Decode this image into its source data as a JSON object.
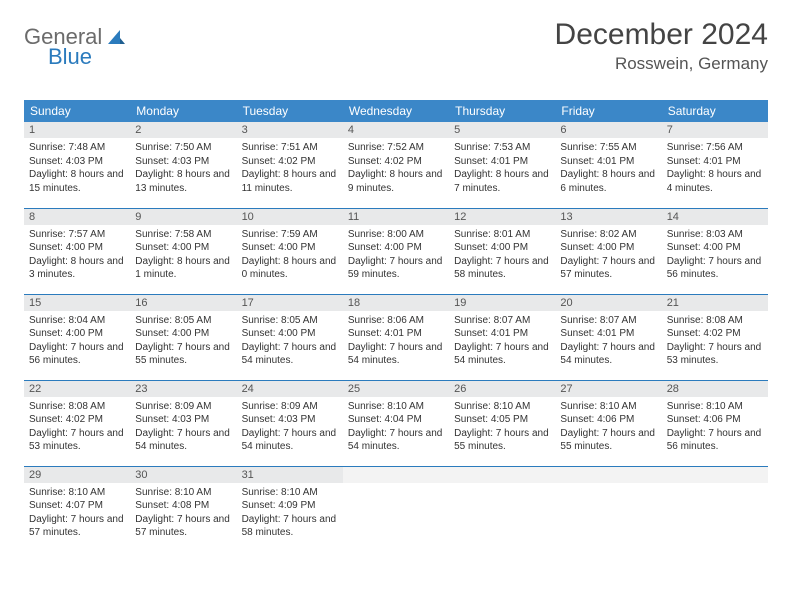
{
  "brand": {
    "word1": "General",
    "word2": "Blue",
    "accent_color": "#2b7bbd",
    "grey_color": "#6b6b6b"
  },
  "title": "December 2024",
  "location": "Rosswein, Germany",
  "header_bg": "#3b87c8",
  "daynum_bg": "#e8e9ea",
  "border_color": "#2b7bbd",
  "weekdays": [
    "Sunday",
    "Monday",
    "Tuesday",
    "Wednesday",
    "Thursday",
    "Friday",
    "Saturday"
  ],
  "weeks": [
    [
      {
        "n": "1",
        "sunrise": "7:48 AM",
        "sunset": "4:03 PM",
        "daylight": "8 hours and 15 minutes."
      },
      {
        "n": "2",
        "sunrise": "7:50 AM",
        "sunset": "4:03 PM",
        "daylight": "8 hours and 13 minutes."
      },
      {
        "n": "3",
        "sunrise": "7:51 AM",
        "sunset": "4:02 PM",
        "daylight": "8 hours and 11 minutes."
      },
      {
        "n": "4",
        "sunrise": "7:52 AM",
        "sunset": "4:02 PM",
        "daylight": "8 hours and 9 minutes."
      },
      {
        "n": "5",
        "sunrise": "7:53 AM",
        "sunset": "4:01 PM",
        "daylight": "8 hours and 7 minutes."
      },
      {
        "n": "6",
        "sunrise": "7:55 AM",
        "sunset": "4:01 PM",
        "daylight": "8 hours and 6 minutes."
      },
      {
        "n": "7",
        "sunrise": "7:56 AM",
        "sunset": "4:01 PM",
        "daylight": "8 hours and 4 minutes."
      }
    ],
    [
      {
        "n": "8",
        "sunrise": "7:57 AM",
        "sunset": "4:00 PM",
        "daylight": "8 hours and 3 minutes."
      },
      {
        "n": "9",
        "sunrise": "7:58 AM",
        "sunset": "4:00 PM",
        "daylight": "8 hours and 1 minute."
      },
      {
        "n": "10",
        "sunrise": "7:59 AM",
        "sunset": "4:00 PM",
        "daylight": "8 hours and 0 minutes."
      },
      {
        "n": "11",
        "sunrise": "8:00 AM",
        "sunset": "4:00 PM",
        "daylight": "7 hours and 59 minutes."
      },
      {
        "n": "12",
        "sunrise": "8:01 AM",
        "sunset": "4:00 PM",
        "daylight": "7 hours and 58 minutes."
      },
      {
        "n": "13",
        "sunrise": "8:02 AM",
        "sunset": "4:00 PM",
        "daylight": "7 hours and 57 minutes."
      },
      {
        "n": "14",
        "sunrise": "8:03 AM",
        "sunset": "4:00 PM",
        "daylight": "7 hours and 56 minutes."
      }
    ],
    [
      {
        "n": "15",
        "sunrise": "8:04 AM",
        "sunset": "4:00 PM",
        "daylight": "7 hours and 56 minutes."
      },
      {
        "n": "16",
        "sunrise": "8:05 AM",
        "sunset": "4:00 PM",
        "daylight": "7 hours and 55 minutes."
      },
      {
        "n": "17",
        "sunrise": "8:05 AM",
        "sunset": "4:00 PM",
        "daylight": "7 hours and 54 minutes."
      },
      {
        "n": "18",
        "sunrise": "8:06 AM",
        "sunset": "4:01 PM",
        "daylight": "7 hours and 54 minutes."
      },
      {
        "n": "19",
        "sunrise": "8:07 AM",
        "sunset": "4:01 PM",
        "daylight": "7 hours and 54 minutes."
      },
      {
        "n": "20",
        "sunrise": "8:07 AM",
        "sunset": "4:01 PM",
        "daylight": "7 hours and 54 minutes."
      },
      {
        "n": "21",
        "sunrise": "8:08 AM",
        "sunset": "4:02 PM",
        "daylight": "7 hours and 53 minutes."
      }
    ],
    [
      {
        "n": "22",
        "sunrise": "8:08 AM",
        "sunset": "4:02 PM",
        "daylight": "7 hours and 53 minutes."
      },
      {
        "n": "23",
        "sunrise": "8:09 AM",
        "sunset": "4:03 PM",
        "daylight": "7 hours and 54 minutes."
      },
      {
        "n": "24",
        "sunrise": "8:09 AM",
        "sunset": "4:03 PM",
        "daylight": "7 hours and 54 minutes."
      },
      {
        "n": "25",
        "sunrise": "8:10 AM",
        "sunset": "4:04 PM",
        "daylight": "7 hours and 54 minutes."
      },
      {
        "n": "26",
        "sunrise": "8:10 AM",
        "sunset": "4:05 PM",
        "daylight": "7 hours and 55 minutes."
      },
      {
        "n": "27",
        "sunrise": "8:10 AM",
        "sunset": "4:06 PM",
        "daylight": "7 hours and 55 minutes."
      },
      {
        "n": "28",
        "sunrise": "8:10 AM",
        "sunset": "4:06 PM",
        "daylight": "7 hours and 56 minutes."
      }
    ],
    [
      {
        "n": "29",
        "sunrise": "8:10 AM",
        "sunset": "4:07 PM",
        "daylight": "7 hours and 57 minutes."
      },
      {
        "n": "30",
        "sunrise": "8:10 AM",
        "sunset": "4:08 PM",
        "daylight": "7 hours and 57 minutes."
      },
      {
        "n": "31",
        "sunrise": "8:10 AM",
        "sunset": "4:09 PM",
        "daylight": "7 hours and 58 minutes."
      },
      {
        "empty": true
      },
      {
        "empty": true
      },
      {
        "empty": true
      },
      {
        "empty": true
      }
    ]
  ],
  "labels": {
    "sunrise": "Sunrise: ",
    "sunset": "Sunset: ",
    "daylight": "Daylight: "
  }
}
